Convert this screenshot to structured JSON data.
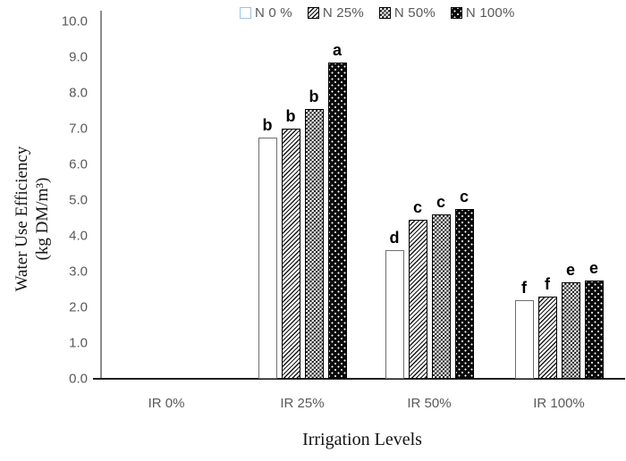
{
  "chart_data": {
    "type": "bar",
    "title": "",
    "xlabel": "Irrigation Levels",
    "ylabel_line1": "Water Use Efficiency",
    "ylabel_line2": "(kg DM/m³)",
    "categories": [
      "IR 0%",
      "IR 25%",
      "IR 50%",
      "IR 100%"
    ],
    "series": [
      {
        "name": "N 0 %",
        "pattern": "plain",
        "values": [
          0,
          6.75,
          3.6,
          2.2
        ],
        "letters": [
          "",
          "b",
          "d",
          "f"
        ]
      },
      {
        "name": "N 25%",
        "pattern": "diagonal-hatch",
        "values": [
          0,
          7.0,
          4.45,
          2.3
        ],
        "letters": [
          "",
          "b",
          "c",
          "f"
        ]
      },
      {
        "name": "N 50%",
        "pattern": "checkerboard",
        "values": [
          0,
          7.55,
          4.6,
          2.7
        ],
        "letters": [
          "",
          "b",
          "c",
          "e"
        ]
      },
      {
        "name": "N 100%",
        "pattern": "black-dotted",
        "values": [
          0,
          8.85,
          4.75,
          2.75
        ],
        "letters": [
          "",
          "a",
          "c",
          "e"
        ]
      }
    ],
    "ylim": [
      0,
      10
    ],
    "ytick_step": 1,
    "yticks": [
      "0.0",
      "1.0",
      "2.0",
      "3.0",
      "4.0",
      "5.0",
      "6.0",
      "7.0",
      "8.0",
      "9.0",
      "10.0"
    ],
    "legend_position": "top-center",
    "grid": false,
    "colors": {
      "axis_text": "#595959",
      "y_axis_line": "#8c8c8c",
      "x_axis_line": "#1f1f1f",
      "significance_letters": "#000000",
      "legend_n0_swatch_border": "#9dc3e6",
      "bar_outline": "#000000"
    }
  }
}
